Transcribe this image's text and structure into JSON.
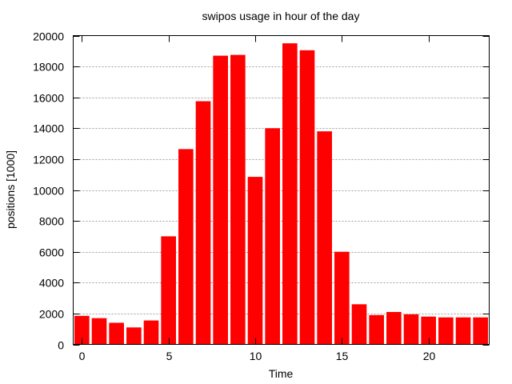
{
  "chart_data": {
    "type": "bar",
    "title": "swipos usage in hour of the day",
    "xlabel": "Time",
    "ylabel": "positions [1000]",
    "x": [
      0,
      1,
      2,
      3,
      4,
      5,
      6,
      7,
      8,
      9,
      10,
      11,
      12,
      13,
      14,
      15,
      16,
      17,
      18,
      19,
      20,
      21,
      22,
      23
    ],
    "values": [
      1850,
      1700,
      1400,
      1100,
      1550,
      7000,
      12650,
      15750,
      18700,
      18750,
      10850,
      14000,
      19500,
      19050,
      13800,
      6000,
      2600,
      1900,
      2100,
      1950,
      1800,
      1750,
      1750,
      1750
    ],
    "xticks": [
      0,
      5,
      10,
      15,
      20
    ],
    "yticks": [
      0,
      2000,
      4000,
      6000,
      8000,
      10000,
      12000,
      14000,
      16000,
      18000,
      20000
    ],
    "xlim": [
      -0.5,
      23.5
    ],
    "ylim": [
      0,
      20000
    ],
    "grid": "horizontal",
    "bar_color": "#ff0000"
  }
}
